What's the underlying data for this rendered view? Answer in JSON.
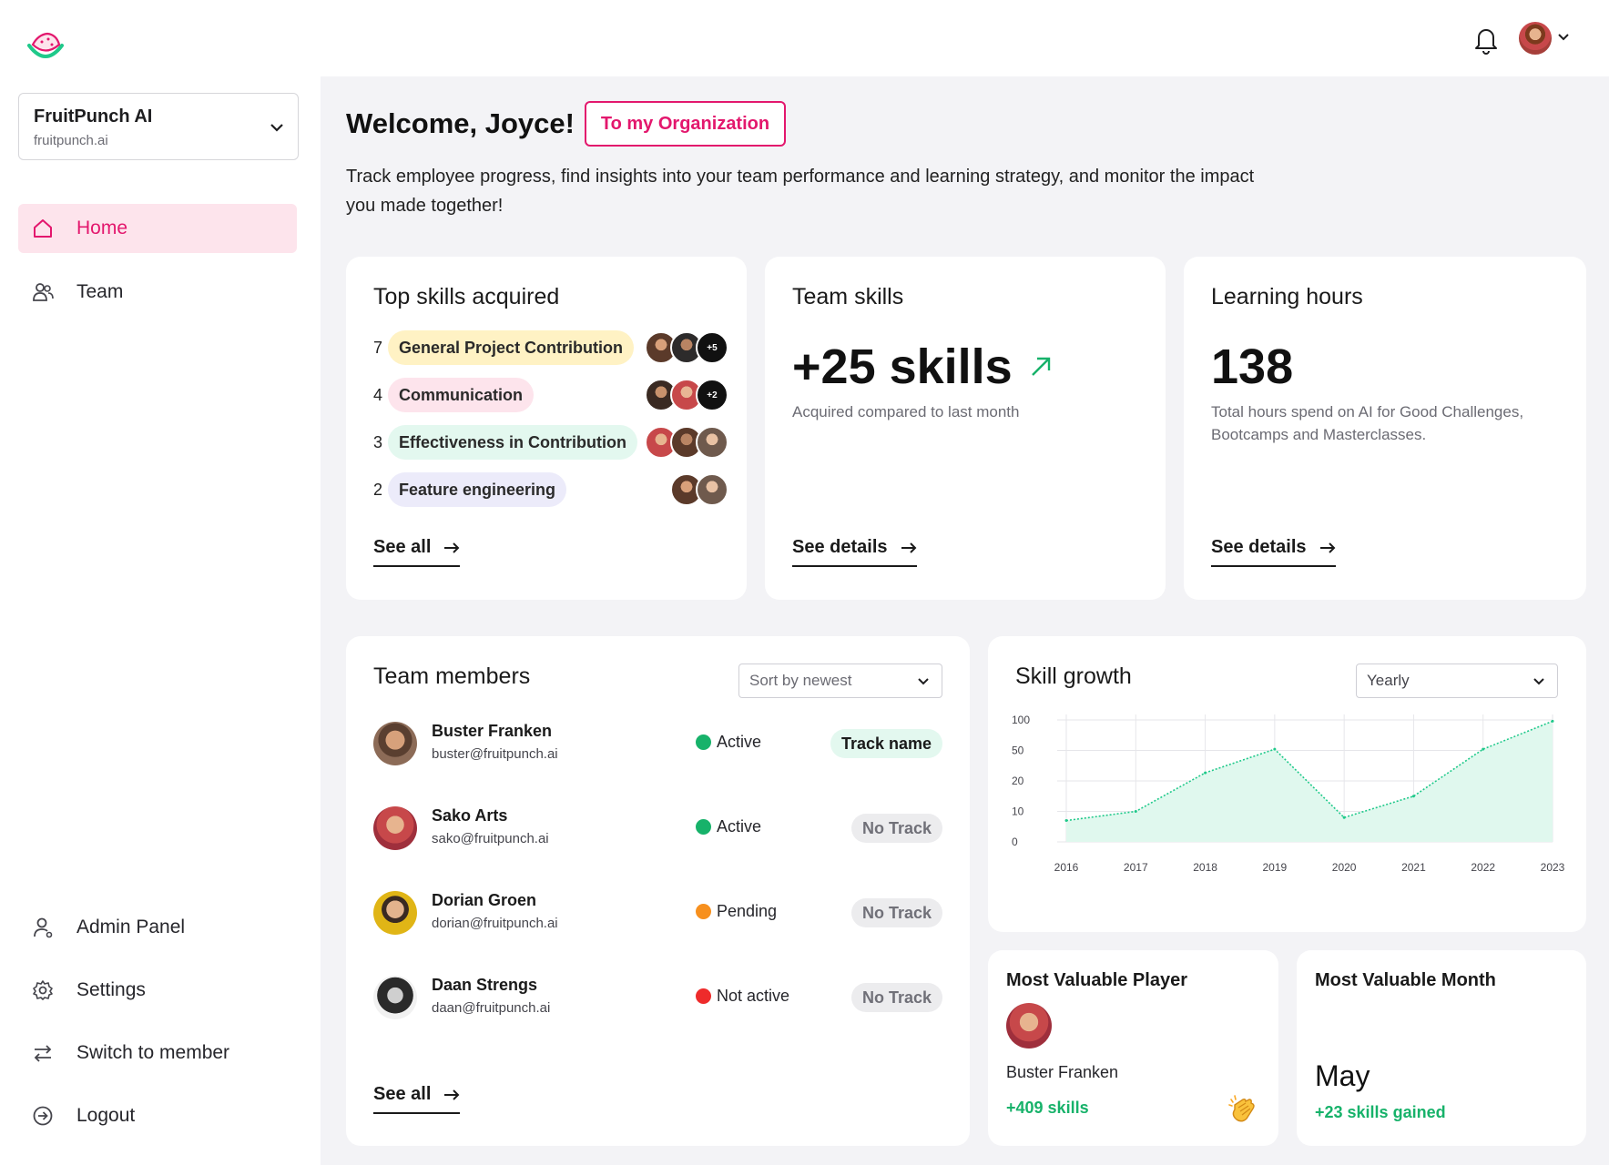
{
  "org": {
    "name": "FruitPunch AI",
    "domain": "fruitpunch.ai"
  },
  "sidebar": {
    "items": [
      {
        "label": "Home",
        "icon": "home-icon",
        "active": true
      },
      {
        "label": "Team",
        "icon": "users-icon",
        "active": false
      }
    ],
    "bottom_items": [
      {
        "label": "Admin Panel",
        "icon": "admin-user-icon"
      },
      {
        "label": "Settings",
        "icon": "gear-icon"
      },
      {
        "label": "Switch to member",
        "icon": "switch-arrows-icon"
      },
      {
        "label": "Logout",
        "icon": "logout-icon"
      }
    ]
  },
  "header": {
    "welcome": "Welcome, Joyce!",
    "org_button": "To my Organization",
    "intro": "Track employee progress, find insights into your team performance and learning strategy, and monitor the impact you made together!"
  },
  "top_skills": {
    "title": "Top skills acquired",
    "rows": [
      {
        "count": "7",
        "label": "General Project Contribution",
        "color": "#fff2c4",
        "more": "+5"
      },
      {
        "count": "4",
        "label": "Communication",
        "color": "#fde4ec",
        "more": "+2"
      },
      {
        "count": "3",
        "label": "Effectiveness in Contribution",
        "color": "#e3f8ef",
        "more": ""
      },
      {
        "count": "2",
        "label": "Feature engineering",
        "color": "#ecebfa",
        "more": ""
      }
    ],
    "link": "See all"
  },
  "team_skills": {
    "title": "Team skills",
    "value": "+25 skills",
    "sub": "Acquired compared to last month",
    "link": "See details"
  },
  "learning_hours": {
    "title": "Learning hours",
    "value": "138",
    "sub": "Total hours spend on AI for Good Challenges, Bootcamps and Masterclasses.",
    "link": "See details"
  },
  "team_members": {
    "title": "Team members",
    "sort": "Sort by newest",
    "members": [
      {
        "name": "Buster Franken",
        "email": "buster@fruitpunch.ai",
        "status": "Active",
        "status_color": "#17b26a",
        "track": "Track name",
        "track_bg": "#e3f8ef",
        "track_color": "#1a1a1a"
      },
      {
        "name": "Sako Arts",
        "email": "sako@fruitpunch.ai",
        "status": "Active",
        "status_color": "#17b26a",
        "track": "No Track",
        "track_bg": "#ececee",
        "track_color": "#707078"
      },
      {
        "name": "Dorian Groen",
        "email": "dorian@fruitpunch.ai",
        "status": "Pending",
        "status_color": "#f7901e",
        "track": "No Track",
        "track_bg": "#ececee",
        "track_color": "#707078"
      },
      {
        "name": "Daan Strengs",
        "email": "daan@fruitpunch.ai",
        "status": "Not active",
        "status_color": "#ee2b2b",
        "track": "No Track",
        "track_bg": "#ececee",
        "track_color": "#707078"
      }
    ],
    "link": "See all"
  },
  "skill_growth": {
    "title": "Skill growth",
    "period": "Yearly"
  },
  "chart_data": {
    "type": "area",
    "x": [
      "2016",
      "2017",
      "2018",
      "2019",
      "2020",
      "2021",
      "2022",
      "2023"
    ],
    "values": [
      7,
      10,
      28,
      52,
      8,
      15,
      52,
      98
    ],
    "yticks": [
      "100",
      "50",
      "20",
      "10",
      "0"
    ],
    "color": "#1fc98a",
    "fill": "#e0f8ee",
    "grid": true
  },
  "mvp": {
    "title": "Most Valuable Player",
    "name": "Buster Franken",
    "skills": "+409 skills",
    "icon": "clapping-hands-icon"
  },
  "mvm": {
    "title": "Most Valuable Month",
    "month": "May",
    "skills": "+23 skills gained"
  },
  "colors": {
    "accent": "#e3176d",
    "green": "#17b26a"
  }
}
